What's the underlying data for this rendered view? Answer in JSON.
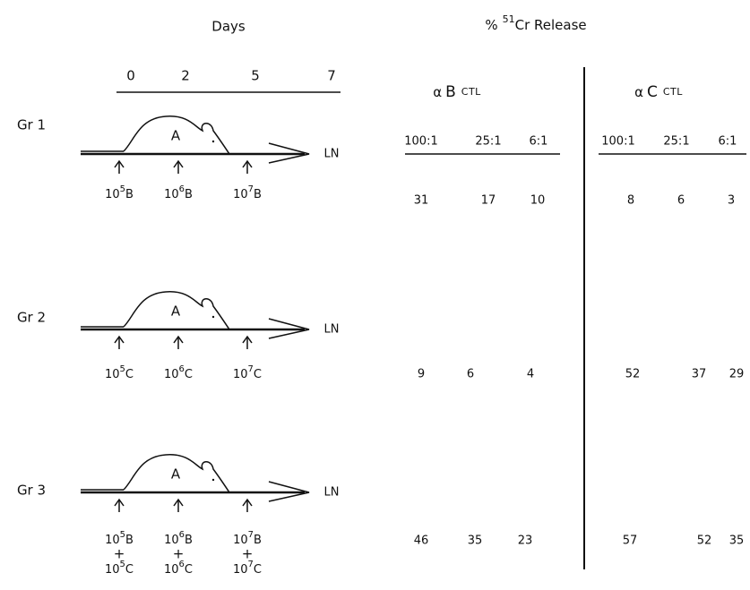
{
  "days": {
    "title": "Days",
    "labels": [
      "0",
      "2",
      "5",
      "7"
    ]
  },
  "release": {
    "percent": "%",
    "isotope": "51",
    "rest": "Cr Release"
  },
  "targets": [
    {
      "alpha": "α",
      "cell": "B",
      "ctl": "CTL",
      "ratios": [
        "100:1",
        "25:1",
        "6:1"
      ]
    },
    {
      "alpha": "α",
      "cell": "C",
      "ctl": "CTL",
      "ratios": [
        "100:1",
        "25:1",
        "6:1"
      ]
    }
  ],
  "groups": [
    {
      "label": "Gr 1",
      "mouse": "A",
      "site": "LN",
      "doses": [
        [
          {
            "base": "10",
            "exp": "5",
            "cell": "B"
          }
        ],
        [
          {
            "base": "10",
            "exp": "6",
            "cell": "B"
          }
        ],
        [
          {
            "base": "10",
            "exp": "7",
            "cell": "B"
          }
        ]
      ],
      "release": [
        [
          31,
          17,
          10
        ],
        [
          8,
          6,
          3
        ]
      ]
    },
    {
      "label": "Gr 2",
      "mouse": "A",
      "site": "LN",
      "doses": [
        [
          {
            "base": "10",
            "exp": "5",
            "cell": "C"
          }
        ],
        [
          {
            "base": "10",
            "exp": "6",
            "cell": "C"
          }
        ],
        [
          {
            "base": "10",
            "exp": "7",
            "cell": "C"
          }
        ]
      ],
      "release": [
        [
          9,
          6,
          4
        ],
        [
          52,
          37,
          29
        ]
      ]
    },
    {
      "label": "Gr 3",
      "mouse": "A",
      "site": "LN",
      "plus": "+",
      "doses": [
        [
          {
            "base": "10",
            "exp": "5",
            "cell": "B"
          },
          {
            "base": "10",
            "exp": "5",
            "cell": "C"
          }
        ],
        [
          {
            "base": "10",
            "exp": "6",
            "cell": "B"
          },
          {
            "base": "10",
            "exp": "6",
            "cell": "C"
          }
        ],
        [
          {
            "base": "10",
            "exp": "7",
            "cell": "B"
          },
          {
            "base": "10",
            "exp": "7",
            "cell": "C"
          }
        ]
      ],
      "release": [
        [
          46,
          35,
          23
        ],
        [
          57,
          52,
          35
        ]
      ]
    }
  ]
}
